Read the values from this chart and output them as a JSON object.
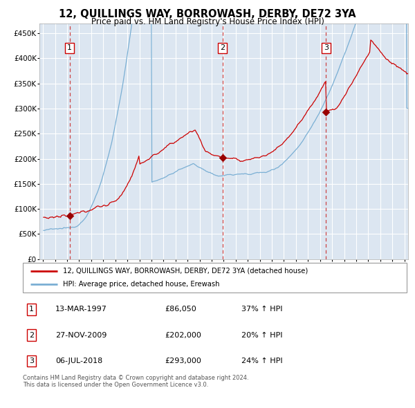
{
  "title": "12, QUILLINGS WAY, BORROWASH, DERBY, DE72 3YA",
  "subtitle": "Price paid vs. HM Land Registry's House Price Index (HPI)",
  "red_label": "12, QUILLINGS WAY, BORROWASH, DERBY, DE72 3YA (detached house)",
  "blue_label": "HPI: Average price, detached house, Erewash",
  "sale_points": [
    {
      "label": "1",
      "date": "13-MAR-1997",
      "price": 86050,
      "pct": "37%",
      "x": 1997.2
    },
    {
      "label": "2",
      "date": "27-NOV-2009",
      "price": 202000,
      "pct": "20%",
      "x": 2009.9
    },
    {
      "label": "3",
      "date": "06-JUL-2018",
      "price": 293000,
      "pct": "24%",
      "x": 2018.5
    }
  ],
  "footer": "Contains HM Land Registry data © Crown copyright and database right 2024.\nThis data is licensed under the Open Government Licence v3.0.",
  "ylim": [
    0,
    470000
  ],
  "xlim": [
    1994.7,
    2025.3
  ],
  "yticks": [
    0,
    50000,
    100000,
    150000,
    200000,
    250000,
    300000,
    350000,
    400000,
    450000
  ],
  "ytick_labels": [
    "£0",
    "£50K",
    "£100K",
    "£150K",
    "£200K",
    "£250K",
    "£300K",
    "£350K",
    "£400K",
    "£450K"
  ],
  "xticks": [
    1995,
    1996,
    1997,
    1998,
    1999,
    2000,
    2001,
    2002,
    2003,
    2004,
    2005,
    2006,
    2007,
    2008,
    2009,
    2010,
    2011,
    2012,
    2013,
    2014,
    2015,
    2016,
    2017,
    2018,
    2019,
    2020,
    2021,
    2022,
    2023,
    2024,
    2025
  ],
  "bg_color": "#dce6f1",
  "grid_color": "#ffffff",
  "red_color": "#cc0000",
  "blue_color": "#7aafd4",
  "marker_color": "#990000"
}
